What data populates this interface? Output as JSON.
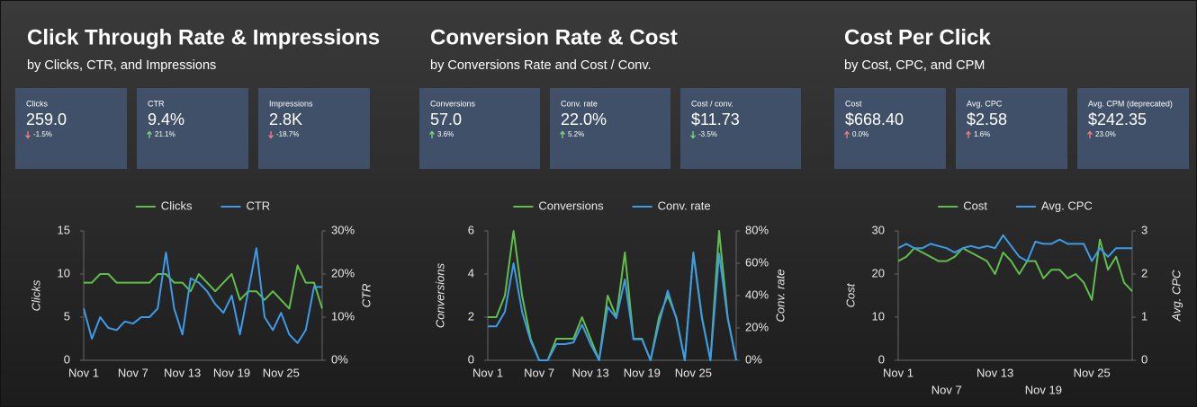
{
  "panels": [
    {
      "title": "Click Through Rate & Impressions",
      "subtitle": "by Clicks, CTR, and Impressions",
      "cards": [
        {
          "label": "Clicks",
          "value": "259.0",
          "delta": "-1.5%",
          "arrow": "down",
          "delta_color": "#f08080"
        },
        {
          "label": "CTR",
          "value": "9.4%",
          "delta": "21.1%",
          "arrow": "up",
          "delta_color": "#7ed67e"
        },
        {
          "label": "Impressions",
          "value": "2.8K",
          "delta": "-18.7%",
          "arrow": "down",
          "delta_color": "#f08080"
        }
      ]
    },
    {
      "title": "Conversion Rate & Cost",
      "subtitle": "by Conversions Rate and Cost / Conv.",
      "cards": [
        {
          "label": "Conversions",
          "value": "57.0",
          "delta": "3.6%",
          "arrow": "up",
          "delta_color": "#7ed67e"
        },
        {
          "label": "Conv. rate",
          "value": "22.0%",
          "delta": "5.2%",
          "arrow": "up",
          "delta_color": "#7ed67e"
        },
        {
          "label": "Cost / conv.",
          "value": "$11.73",
          "delta": "-3.5%",
          "arrow": "down",
          "delta_color": "#7ed67e"
        }
      ]
    },
    {
      "title": "Cost Per Click",
      "subtitle": "by Cost, CPC, and CPM",
      "cards": [
        {
          "label": "Cost",
          "value": "$668.40",
          "delta": "0.0%",
          "arrow": "up",
          "delta_color": "#f08080"
        },
        {
          "label": "Avg. CPC",
          "value": "$2.58",
          "delta": "1.6%",
          "arrow": "up",
          "delta_color": "#f08080"
        },
        {
          "label": "Avg. CPM (deprecated)",
          "value": "$242.35",
          "delta": "23.0%",
          "arrow": "up",
          "delta_color": "#f08080"
        }
      ]
    }
  ],
  "chart_data": [
    {
      "type": "line",
      "categories": [
        "Nov 1",
        null,
        null,
        null,
        null,
        null,
        "Nov 7",
        null,
        null,
        null,
        null,
        null,
        "Nov 13",
        null,
        null,
        null,
        null,
        null,
        "Nov 19",
        null,
        null,
        null,
        null,
        null,
        "Nov 25",
        null,
        null,
        null,
        null,
        null
      ],
      "series": [
        {
          "name": "Clicks",
          "color": "#5fbf4a",
          "axis": "y",
          "values": [
            9,
            9,
            10,
            10,
            9,
            9,
            9,
            9,
            9,
            10,
            10,
            9,
            9,
            8,
            10,
            9,
            8,
            9,
            10,
            7,
            8,
            8,
            7,
            8,
            7,
            6,
            11,
            9,
            9,
            6
          ]
        },
        {
          "name": "CTR",
          "color": "#3d9be9",
          "axis": "y2",
          "values": [
            12,
            5,
            10,
            7.5,
            7,
            9,
            8.5,
            10,
            10,
            12,
            25,
            12,
            6,
            19,
            18,
            16,
            13,
            11,
            15,
            6,
            16,
            26,
            10,
            7,
            11,
            6,
            4,
            7,
            17,
            17
          ]
        }
      ],
      "ylabel": "Clicks",
      "y2label": "CTR",
      "ylim": [
        0,
        15
      ],
      "yticks": [
        0,
        5,
        10,
        15
      ],
      "y2lim": [
        0,
        30
      ],
      "y2ticks": [
        {
          "value": 0,
          "label": "0%"
        },
        {
          "value": 10,
          "label": "10%"
        },
        {
          "value": 20,
          "label": "20%"
        },
        {
          "value": 30,
          "label": "30%"
        }
      ]
    },
    {
      "type": "line",
      "categories": [
        "Nov 1",
        null,
        null,
        null,
        null,
        null,
        "Nov 7",
        null,
        null,
        null,
        null,
        null,
        "Nov 13",
        null,
        null,
        null,
        null,
        null,
        "Nov 19",
        null,
        null,
        null,
        null,
        null,
        "Nov 25",
        null,
        null,
        null,
        null,
        null
      ],
      "series": [
        {
          "name": "Conversions",
          "color": "#5fbf4a",
          "axis": "y",
          "values": [
            2,
            2,
            3,
            6,
            3,
            1,
            0,
            0,
            1,
            1,
            1,
            2,
            1,
            0,
            3,
            2,
            5,
            1,
            1,
            0,
            2,
            3,
            2,
            0,
            5,
            2,
            0,
            6,
            2,
            0
          ]
        },
        {
          "name": "Conv. rate",
          "color": "#3d9be9",
          "axis": "y2",
          "values": [
            21,
            21,
            30,
            60,
            30,
            12,
            0,
            0,
            10,
            10,
            11,
            22,
            10,
            0,
            33,
            26,
            50,
            13,
            13,
            0,
            23,
            43,
            26,
            0,
            66,
            26,
            0,
            66,
            26,
            0
          ]
        }
      ],
      "ylabel": "Conversions",
      "y2label": "Conv. rate",
      "ylim": [
        0,
        6
      ],
      "yticks": [
        0,
        2,
        4,
        6
      ],
      "y2lim": [
        0,
        80
      ],
      "y2ticks": [
        {
          "value": 0,
          "label": "0%"
        },
        {
          "value": 20,
          "label": "20%"
        },
        {
          "value": 40,
          "label": "40%"
        },
        {
          "value": 60,
          "label": "60%"
        },
        {
          "value": 80,
          "label": "80%"
        }
      ]
    },
    {
      "type": "line",
      "staggered_x_labels": true,
      "categories": [
        "Nov 1",
        null,
        null,
        null,
        null,
        null,
        "Nov 7",
        null,
        null,
        null,
        null,
        null,
        "Nov 13",
        null,
        null,
        null,
        null,
        null,
        "Nov 19",
        null,
        null,
        null,
        null,
        null,
        "Nov 25",
        null,
        null,
        null,
        null,
        null
      ],
      "series": [
        {
          "name": "Cost",
          "color": "#5fbf4a",
          "axis": "y",
          "values": [
            23,
            24,
            26,
            25,
            24,
            23,
            23,
            24,
            26,
            25,
            24,
            23,
            20,
            25,
            23,
            20,
            23,
            23,
            19,
            21,
            21,
            19,
            20,
            18,
            14,
            28,
            21,
            24,
            18,
            16
          ]
        },
        {
          "name": "Avg. CPC",
          "color": "#3d9be9",
          "axis": "y2",
          "values": [
            2.6,
            2.7,
            2.6,
            2.6,
            2.7,
            2.65,
            2.6,
            2.5,
            2.6,
            2.65,
            2.6,
            2.65,
            2.6,
            2.9,
            2.65,
            2.4,
            2.3,
            2.75,
            2.7,
            2.7,
            2.8,
            2.7,
            2.7,
            2.7,
            2.3,
            2.6,
            2.4,
            2.6,
            2.6,
            2.6
          ]
        }
      ],
      "ylabel": "Cost",
      "y2label": "Avg. CPC",
      "ylim": [
        0,
        30
      ],
      "yticks": [
        0,
        10,
        20,
        30
      ],
      "y2lim": [
        0,
        3
      ],
      "y2ticks": [
        0,
        1,
        2,
        3
      ]
    }
  ]
}
